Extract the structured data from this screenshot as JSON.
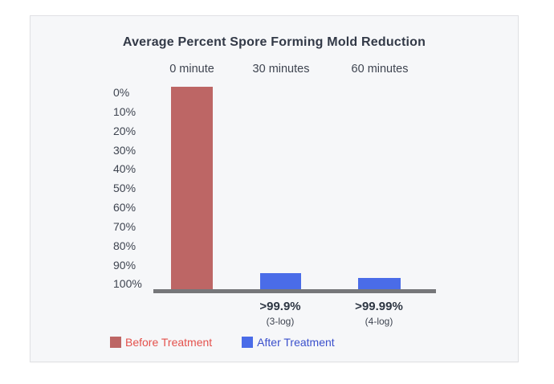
{
  "chart_data": {
    "type": "bar",
    "title": "Average Percent Spore Forming Mold Reduction",
    "categories": [
      "0 minute",
      "30 minutes",
      "60 minutes"
    ],
    "y_ticks": [
      "0%",
      "10%",
      "20%",
      "30%",
      "40%",
      "50%",
      "60%",
      "70%",
      "80%",
      "90%",
      "100%"
    ],
    "y_axis": {
      "unit": "%",
      "min": 0,
      "max": 100,
      "direction": "inverted (0% at top, 100% at bottom)",
      "grid": false
    },
    "series": [
      {
        "name": "Before Treatment",
        "color": "#bd6665",
        "categories": [
          "0 minute"
        ],
        "values": [
          0
        ],
        "note": "full-height bar spanning entire 0%-100% axis"
      },
      {
        "name": "After Treatment",
        "color": "#4a6ce8",
        "categories": [
          "30 minutes",
          "60 minutes"
        ],
        "values": [
          ">99.9%",
          ">99.99%"
        ]
      }
    ],
    "annotations": [
      {
        "category": "30 minutes",
        "value_label": ">99.9%",
        "log_label": "(3-log)"
      },
      {
        "category": "60 minutes",
        "value_label": ">99.99%",
        "log_label": "(4-log)"
      }
    ],
    "legend": {
      "position": "bottom-left",
      "items": [
        {
          "label": "Before Treatment",
          "swatch_color": "#bd6665",
          "text_color": "#e4514c"
        },
        {
          "label": "After Treatment",
          "swatch_color": "#4a6ce8",
          "text_color": "#3b50cc"
        }
      ]
    },
    "baseline_color": "#76777a"
  },
  "card": {
    "background": "#f6f7f9",
    "border_color": "#e0e1e4"
  }
}
